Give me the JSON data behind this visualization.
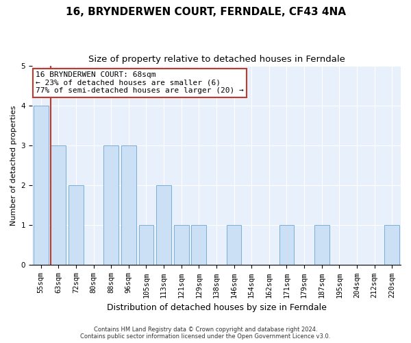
{
  "title": "16, BRYNDERWEN COURT, FERNDALE, CF43 4NA",
  "subtitle": "Size of property relative to detached houses in Ferndale",
  "xlabel": "Distribution of detached houses by size in Ferndale",
  "ylabel": "Number of detached properties",
  "categories": [
    "55sqm",
    "63sqm",
    "72sqm",
    "80sqm",
    "88sqm",
    "96sqm",
    "105sqm",
    "113sqm",
    "121sqm",
    "129sqm",
    "138sqm",
    "146sqm",
    "154sqm",
    "162sqm",
    "171sqm",
    "179sqm",
    "187sqm",
    "195sqm",
    "204sqm",
    "212sqm",
    "220sqm"
  ],
  "values": [
    4,
    3,
    2,
    0,
    3,
    3,
    1,
    2,
    1,
    1,
    0,
    1,
    0,
    0,
    1,
    0,
    1,
    0,
    0,
    0,
    1
  ],
  "bar_color": "#cce0f5",
  "bar_edge_color": "#7aaed6",
  "vline_x": 0.57,
  "vline_color": "#c0392b",
  "annotation_text": "16 BRYNDERWEN COURT: 68sqm\n← 23% of detached houses are smaller (6)\n77% of semi-detached houses are larger (20) →",
  "annotation_box_color": "white",
  "annotation_box_edge_color": "#c0392b",
  "ylim": [
    0,
    5
  ],
  "yticks": [
    0,
    1,
    2,
    3,
    4,
    5
  ],
  "title_fontsize": 11,
  "subtitle_fontsize": 9.5,
  "xlabel_fontsize": 9,
  "ylabel_fontsize": 8,
  "tick_fontsize": 7.5,
  "annotation_fontsize": 8,
  "footer_text": "Contains HM Land Registry data © Crown copyright and database right 2024.\nContains public sector information licensed under the Open Government Licence v3.0.",
  "footer_fontsize": 6,
  "background_color": "#e8f0fb",
  "fig_background": "#ffffff"
}
